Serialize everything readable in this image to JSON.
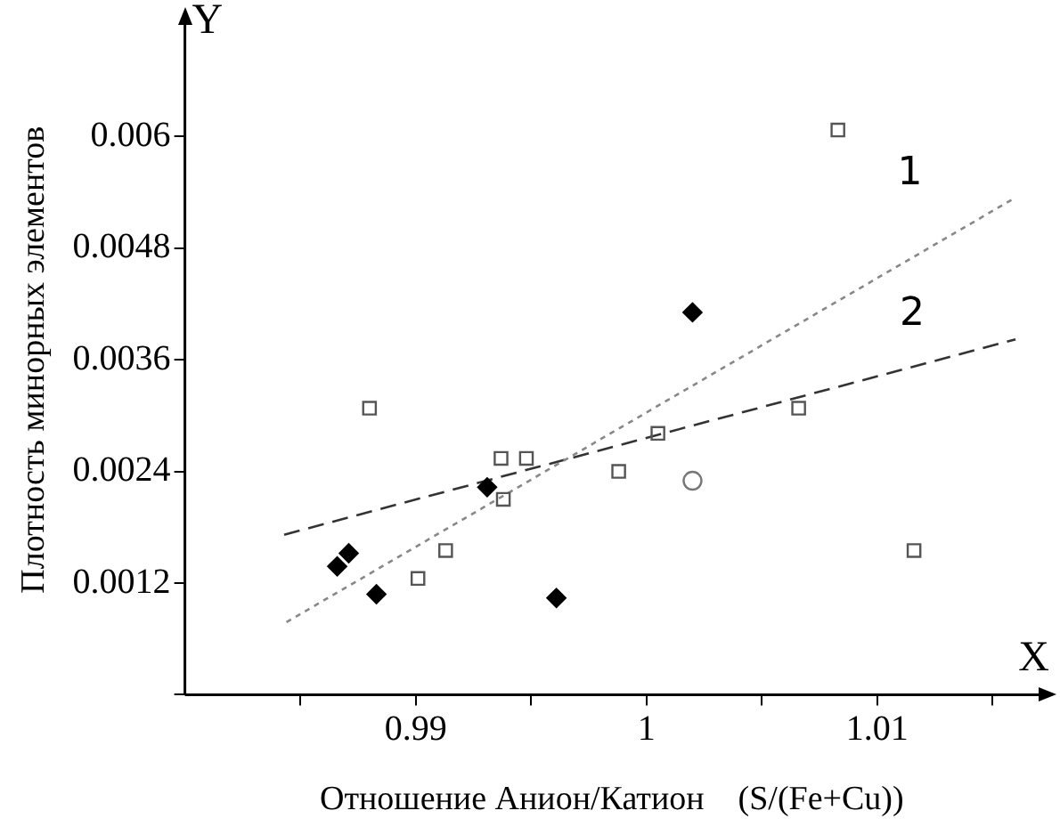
{
  "chart_data": {
    "type": "scatter",
    "xlabel": "Отношение Анион/Катион    (S/(Fe+Cu))",
    "ylabel": "Плотность минорных элементов",
    "xlim": [
      0.98,
      1.017
    ],
    "ylim": [
      0,
      0.0072
    ],
    "xticks": [
      {
        "value": 0.985,
        "label": null
      },
      0.99,
      {
        "value": 0.995,
        "label": null
      },
      1,
      {
        "value": 1.005,
        "label": null
      },
      1.01,
      {
        "value": 1.015,
        "label": null
      }
    ],
    "yticks": [
      {
        "value": 0,
        "label": null
      },
      0.0012,
      0.0024,
      0.0036,
      0.0048,
      0.006
    ],
    "grid": false,
    "legend": false,
    "annotations": [
      "Y",
      "X",
      "1",
      "2"
    ],
    "series": [
      {
        "marker": "square",
        "color": "#555555",
        "x": [
          0.988,
          0.9937,
          0.9948,
          0.9938,
          0.9913,
          0.9901,
          0.9988,
          1.0005,
          1.0066,
          1.0116,
          1.0083
        ],
        "values": [
          0.00308,
          0.00254,
          0.00254,
          0.0021,
          0.00155,
          0.00125,
          0.0024,
          0.00281,
          0.00308,
          0.00155,
          0.00607
        ]
      },
      {
        "marker": "diamond",
        "color": "#000000",
        "x": [
          0.9866,
          0.9871,
          0.9883,
          0.9931,
          0.9961,
          1.002
        ],
        "values": [
          0.00138,
          0.00152,
          0.00108,
          0.00223,
          0.00104,
          0.00411
        ]
      },
      {
        "marker": "circle",
        "color": "#777777",
        "x": [
          1.002
        ],
        "values": [
          0.0023
        ]
      },
      {
        "type": "line",
        "marker": "none",
        "line_style": "dotted",
        "color": "#888888",
        "x": [
          0.9844,
          1.0159
        ],
        "values": [
          0.00078,
          0.00533
        ]
      },
      {
        "type": "line",
        "marker": "none",
        "line_style": "dashed",
        "color": "#333333",
        "x": [
          0.9843,
          1.016
        ],
        "values": [
          0.00172,
          0.00382
        ]
      }
    ]
  }
}
